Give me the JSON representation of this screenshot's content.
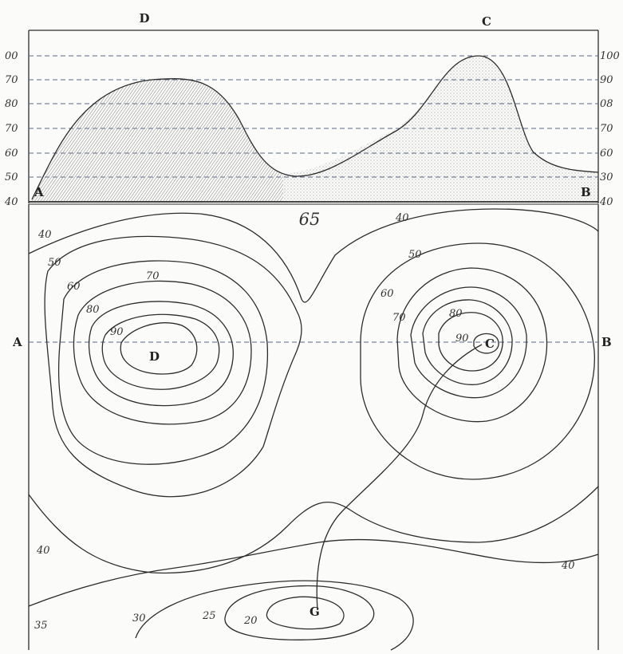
{
  "profile": {
    "top_labels": [
      "D",
      "C"
    ],
    "left_scale": [
      "00",
      "70",
      "80",
      "70",
      "60",
      "50",
      "40"
    ],
    "right_scale": [
      "100",
      "90",
      "08",
      "70",
      "60",
      "30",
      "40"
    ],
    "end_labels": [
      "A",
      "B"
    ]
  },
  "plate_number": "65",
  "section_labels": [
    "A",
    "B"
  ],
  "peaks": [
    "D",
    "C",
    "G"
  ],
  "contour_labels": [
    "40",
    "50",
    "60",
    "70",
    "80",
    "90",
    "40",
    "50",
    "60",
    "70",
    "80",
    "90",
    "40",
    "40",
    "35",
    "30",
    "25",
    "20"
  ],
  "colors": {
    "line": "#2d2d2d",
    "dashed": "#5a6a8a",
    "shade": "#9a9a9a"
  }
}
